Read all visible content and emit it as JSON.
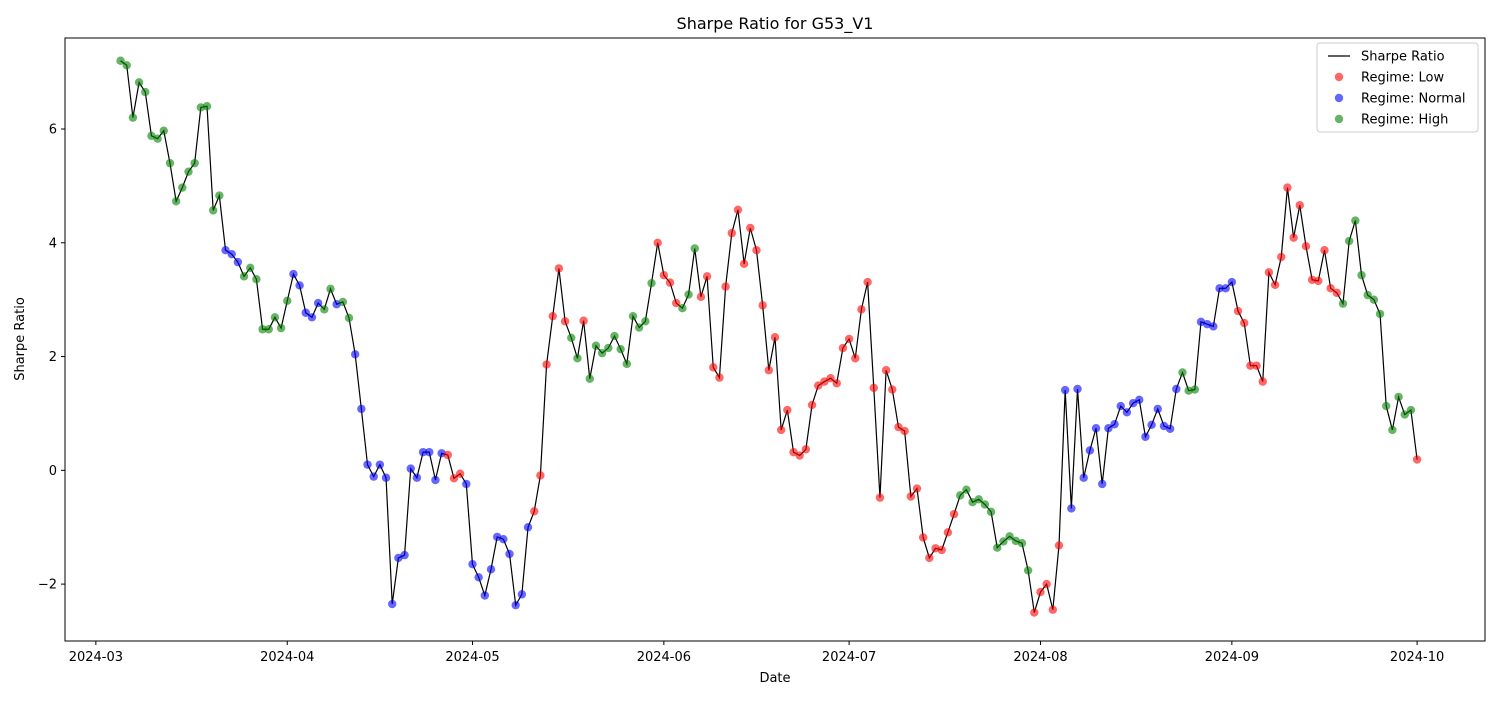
{
  "chart_data": {
    "type": "line",
    "title": "Sharpe Ratio for G53_V1",
    "xlabel": "Date",
    "ylabel": "Sharpe Ratio",
    "x_range": [
      "2024-02-25",
      "2024-10-12"
    ],
    "ylim": [
      -3.0,
      7.6
    ],
    "x_ticks": [
      "2024-03-01",
      "2024-04-01",
      "2024-05-01",
      "2024-06-01",
      "2024-07-01",
      "2024-08-01",
      "2024-09-01",
      "2024-10-01"
    ],
    "x_tick_labels": [
      "2024-03",
      "2024-04",
      "2024-05",
      "2024-06",
      "2024-07",
      "2024-08",
      "2024-09",
      "2024-10"
    ],
    "y_ticks": [
      -2,
      0,
      2,
      4,
      6
    ],
    "y_tick_labels": [
      "−2",
      "0",
      "2",
      "4",
      "6"
    ],
    "grid": false,
    "legend": {
      "position": "top-right",
      "entries": [
        {
          "label": "Sharpe Ratio",
          "kind": "line",
          "color": "#000000"
        },
        {
          "label": "Regime: Low",
          "kind": "marker",
          "color": "#ff0000"
        },
        {
          "label": "Regime: Normal",
          "kind": "marker",
          "color": "#0000ff"
        },
        {
          "label": "Regime: High",
          "kind": "marker",
          "color": "#008000"
        }
      ]
    },
    "regime_colors": {
      "L": "#ff0000",
      "N": "#0000ff",
      "H": "#008000"
    },
    "line_color": "#000000",
    "start_date": "2024-03-05",
    "frequency": "daily",
    "series": [
      {
        "name": "Sharpe Ratio",
        "values": [
          [
            7.2,
            "H"
          ],
          [
            7.12,
            "H"
          ],
          [
            6.2,
            "H"
          ],
          [
            6.82,
            "H"
          ],
          [
            6.65,
            "H"
          ],
          [
            5.88,
            "H"
          ],
          [
            5.83,
            "H"
          ],
          [
            5.97,
            "H"
          ],
          [
            5.4,
            "H"
          ],
          [
            4.73,
            "H"
          ],
          [
            4.97,
            "H"
          ],
          [
            5.25,
            "H"
          ],
          [
            5.4,
            "H"
          ],
          [
            6.38,
            "H"
          ],
          [
            6.4,
            "H"
          ],
          [
            4.57,
            "H"
          ],
          [
            4.83,
            "H"
          ],
          [
            3.87,
            "N"
          ],
          [
            3.8,
            "N"
          ],
          [
            3.66,
            "N"
          ],
          [
            3.41,
            "H"
          ],
          [
            3.56,
            "H"
          ],
          [
            3.36,
            "H"
          ],
          [
            2.48,
            "H"
          ],
          [
            2.48,
            "H"
          ],
          [
            2.69,
            "H"
          ],
          [
            2.5,
            "H"
          ],
          [
            2.98,
            "H"
          ],
          [
            3.45,
            "N"
          ],
          [
            3.25,
            "N"
          ],
          [
            2.77,
            "N"
          ],
          [
            2.69,
            "N"
          ],
          [
            2.94,
            "N"
          ],
          [
            2.83,
            "H"
          ],
          [
            3.19,
            "H"
          ],
          [
            2.92,
            "N"
          ],
          [
            2.96,
            "H"
          ],
          [
            2.68,
            "H"
          ],
          [
            2.04,
            "N"
          ],
          [
            1.08,
            "N"
          ],
          [
            0.1,
            "N"
          ],
          [
            -0.11,
            "N"
          ],
          [
            0.1,
            "N"
          ],
          [
            -0.13,
            "N"
          ],
          [
            -2.35,
            "N"
          ],
          [
            -1.54,
            "N"
          ],
          [
            -1.49,
            "N"
          ],
          [
            0.03,
            "N"
          ],
          [
            -0.13,
            "N"
          ],
          [
            0.32,
            "N"
          ],
          [
            0.32,
            "N"
          ],
          [
            -0.17,
            "N"
          ],
          [
            0.3,
            "N"
          ],
          [
            0.27,
            "L"
          ],
          [
            -0.14,
            "L"
          ],
          [
            -0.06,
            "L"
          ],
          [
            -0.24,
            "N"
          ],
          [
            -1.65,
            "N"
          ],
          [
            -1.88,
            "N"
          ],
          [
            -2.2,
            "N"
          ],
          [
            -1.74,
            "N"
          ],
          [
            -1.17,
            "N"
          ],
          [
            -1.21,
            "N"
          ],
          [
            -1.47,
            "N"
          ],
          [
            -2.37,
            "N"
          ],
          [
            -2.18,
            "N"
          ],
          [
            -1.0,
            "N"
          ],
          [
            -0.72,
            "L"
          ],
          [
            -0.09,
            "L"
          ],
          [
            1.86,
            "L"
          ],
          [
            2.71,
            "L"
          ],
          [
            3.55,
            "L"
          ],
          [
            2.62,
            "L"
          ],
          [
            2.33,
            "H"
          ],
          [
            1.97,
            "H"
          ],
          [
            2.63,
            "L"
          ],
          [
            1.61,
            "H"
          ],
          [
            2.19,
            "H"
          ],
          [
            2.06,
            "H"
          ],
          [
            2.15,
            "H"
          ],
          [
            2.36,
            "H"
          ],
          [
            2.13,
            "H"
          ],
          [
            1.87,
            "H"
          ],
          [
            2.71,
            "H"
          ],
          [
            2.51,
            "H"
          ],
          [
            2.62,
            "H"
          ],
          [
            3.29,
            "H"
          ],
          [
            4.0,
            "L"
          ],
          [
            3.43,
            "L"
          ],
          [
            3.3,
            "L"
          ],
          [
            2.94,
            "L"
          ],
          [
            2.85,
            "H"
          ],
          [
            3.09,
            "H"
          ],
          [
            3.9,
            "H"
          ],
          [
            3.05,
            "L"
          ],
          [
            3.41,
            "L"
          ],
          [
            1.81,
            "L"
          ],
          [
            1.63,
            "L"
          ],
          [
            3.23,
            "L"
          ],
          [
            4.17,
            "L"
          ],
          [
            4.58,
            "L"
          ],
          [
            3.63,
            "L"
          ],
          [
            4.26,
            "L"
          ],
          [
            3.87,
            "L"
          ],
          [
            2.9,
            "L"
          ],
          [
            1.76,
            "L"
          ],
          [
            2.34,
            "L"
          ],
          [
            0.71,
            "L"
          ],
          [
            1.06,
            "L"
          ],
          [
            0.32,
            "L"
          ],
          [
            0.26,
            "L"
          ],
          [
            0.37,
            "L"
          ],
          [
            1.15,
            "L"
          ],
          [
            1.49,
            "L"
          ],
          [
            1.56,
            "L"
          ],
          [
            1.62,
            "L"
          ],
          [
            1.53,
            "L"
          ],
          [
            2.15,
            "L"
          ],
          [
            2.31,
            "L"
          ],
          [
            1.97,
            "L"
          ],
          [
            2.83,
            "L"
          ],
          [
            3.31,
            "L"
          ],
          [
            1.45,
            "L"
          ],
          [
            -0.48,
            "L"
          ],
          [
            1.76,
            "L"
          ],
          [
            1.42,
            "L"
          ],
          [
            0.76,
            "L"
          ],
          [
            0.69,
            "L"
          ],
          [
            -0.46,
            "L"
          ],
          [
            -0.32,
            "L"
          ],
          [
            -1.18,
            "L"
          ],
          [
            -1.54,
            "L"
          ],
          [
            -1.37,
            "L"
          ],
          [
            -1.4,
            "L"
          ],
          [
            -1.09,
            "L"
          ],
          [
            -0.77,
            "L"
          ],
          [
            -0.44,
            "H"
          ],
          [
            -0.34,
            "H"
          ],
          [
            -0.56,
            "H"
          ],
          [
            -0.51,
            "H"
          ],
          [
            -0.6,
            "H"
          ],
          [
            -0.73,
            "H"
          ],
          [
            -1.36,
            "H"
          ],
          [
            -1.25,
            "H"
          ],
          [
            -1.16,
            "H"
          ],
          [
            -1.24,
            "H"
          ],
          [
            -1.28,
            "H"
          ],
          [
            -1.76,
            "H"
          ],
          [
            -2.5,
            "L"
          ],
          [
            -2.14,
            "L"
          ],
          [
            -2.0,
            "L"
          ],
          [
            -2.45,
            "L"
          ],
          [
            -1.32,
            "L"
          ],
          [
            1.41,
            "N"
          ],
          [
            -0.67,
            "N"
          ],
          [
            1.43,
            "N"
          ],
          [
            -0.13,
            "N"
          ],
          [
            0.35,
            "N"
          ],
          [
            0.74,
            "N"
          ],
          [
            -0.24,
            "N"
          ],
          [
            0.74,
            "N"
          ],
          [
            0.81,
            "N"
          ],
          [
            1.13,
            "N"
          ],
          [
            1.02,
            "N"
          ],
          [
            1.18,
            "N"
          ],
          [
            1.24,
            "N"
          ],
          [
            0.59,
            "N"
          ],
          [
            0.8,
            "N"
          ],
          [
            1.08,
            "N"
          ],
          [
            0.78,
            "N"
          ],
          [
            0.73,
            "N"
          ],
          [
            1.43,
            "N"
          ],
          [
            1.72,
            "H"
          ],
          [
            1.4,
            "H"
          ],
          [
            1.42,
            "H"
          ],
          [
            2.61,
            "N"
          ],
          [
            2.57,
            "N"
          ],
          [
            2.53,
            "N"
          ],
          [
            3.2,
            "N"
          ],
          [
            3.2,
            "N"
          ],
          [
            3.31,
            "N"
          ],
          [
            2.8,
            "L"
          ],
          [
            2.59,
            "L"
          ],
          [
            1.84,
            "L"
          ],
          [
            1.84,
            "L"
          ],
          [
            1.56,
            "L"
          ],
          [
            3.48,
            "L"
          ],
          [
            3.26,
            "L"
          ],
          [
            3.75,
            "L"
          ],
          [
            4.97,
            "L"
          ],
          [
            4.09,
            "L"
          ],
          [
            4.66,
            "L"
          ],
          [
            3.94,
            "L"
          ],
          [
            3.35,
            "L"
          ],
          [
            3.33,
            "L"
          ],
          [
            3.87,
            "L"
          ],
          [
            3.2,
            "L"
          ],
          [
            3.12,
            "L"
          ],
          [
            2.93,
            "H"
          ],
          [
            4.03,
            "H"
          ],
          [
            4.39,
            "H"
          ],
          [
            3.43,
            "H"
          ],
          [
            3.08,
            "H"
          ],
          [
            3.0,
            "H"
          ],
          [
            2.75,
            "H"
          ],
          [
            1.13,
            "H"
          ],
          [
            0.71,
            "H"
          ],
          [
            1.29,
            "H"
          ],
          [
            0.98,
            "H"
          ],
          [
            1.06,
            "H"
          ],
          [
            0.19,
            "L"
          ]
        ]
      }
    ]
  }
}
